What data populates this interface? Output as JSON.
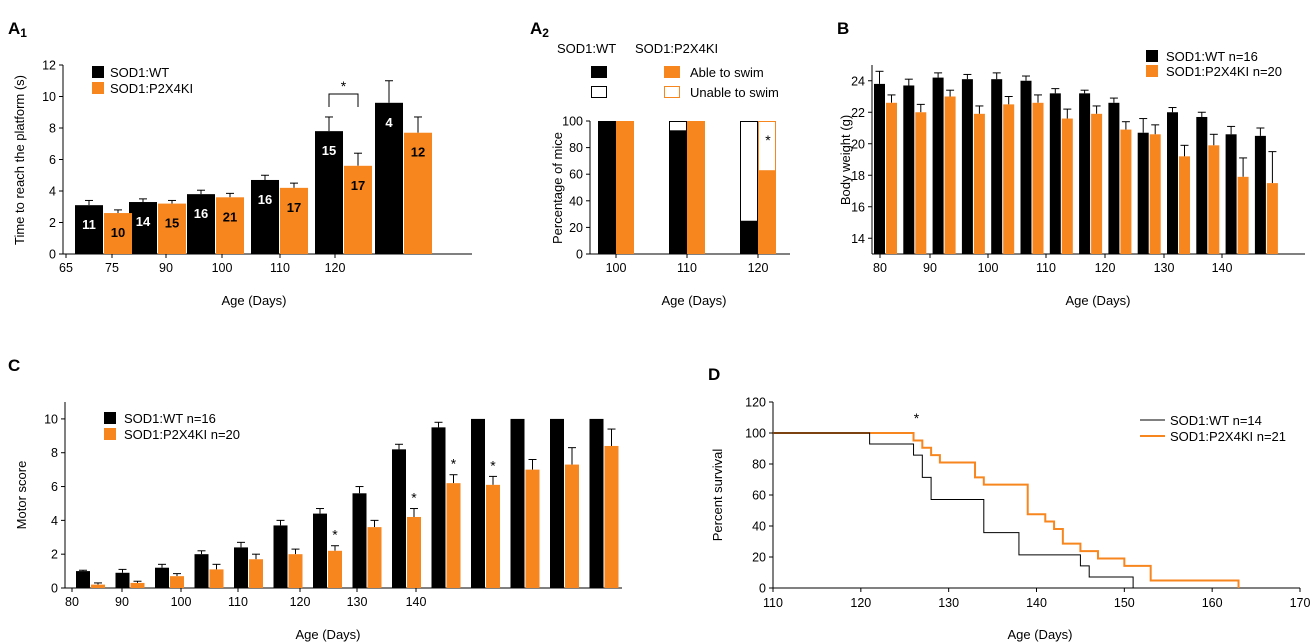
{
  "colors": {
    "wt": "#000000",
    "ki": "#f7861f",
    "axis": "#000000",
    "in_bar_text_dark": "#000000",
    "in_bar_text_light": "#ffffff"
  },
  "chart_data": [
    {
      "panel": "A1",
      "type": "bar",
      "ylabel": "Time to reach the platform (s)",
      "xlabel": "Age (Days)",
      "ylim": [
        0,
        12
      ],
      "yticks": [
        0,
        2,
        4,
        6,
        8,
        10,
        12
      ],
      "x_ticks": [
        "65",
        "75",
        "90",
        "100",
        "110",
        "120"
      ],
      "legend_position": "top-left",
      "series": [
        {
          "name": "SOD1:WT",
          "values": [
            3.1,
            3.3,
            3.8,
            4.7,
            7.8,
            9.6
          ],
          "errors": [
            0.3,
            0.2,
            0.25,
            0.3,
            0.9,
            1.4
          ],
          "n_labels": [
            "11",
            "14",
            "16",
            "16",
            "15",
            "4"
          ]
        },
        {
          "name": "SOD1:P2X4KI",
          "values": [
            2.6,
            3.2,
            3.6,
            4.2,
            5.6,
            7.7
          ],
          "errors": [
            0.2,
            0.2,
            0.25,
            0.3,
            0.8,
            1.0
          ],
          "n_labels": [
            "10",
            "15",
            "21",
            "17",
            "17",
            "12"
          ]
        }
      ],
      "annotations": [
        {
          "text": "*",
          "group": 4
        }
      ]
    },
    {
      "panel": "A2",
      "type": "bar",
      "stacked": true,
      "ylabel": "Percentage of mice",
      "xlabel": "Age (Days)",
      "ylim": [
        0,
        100
      ],
      "yticks": [
        0,
        20,
        40,
        60,
        80,
        100
      ],
      "categories": [
        "100",
        "110",
        "120"
      ],
      "legend_headers": [
        "SOD1:WT",
        "SOD1:P2X4KI"
      ],
      "legend_entries": [
        "Able to swim",
        "Unable to swim"
      ],
      "series": [
        {
          "name": "SOD1:WT",
          "able": [
            100,
            93,
            25
          ]
        },
        {
          "name": "SOD1:P2X4KI",
          "able": [
            100,
            100,
            63
          ]
        }
      ],
      "annotations": [
        {
          "text": "*",
          "category": "120"
        }
      ]
    },
    {
      "panel": "B",
      "type": "bar",
      "ylabel": "Body weight (g)",
      "xlabel": "Age (Days)",
      "ylim": [
        13,
        25
      ],
      "yticks": [
        14,
        16,
        18,
        20,
        22,
        24
      ],
      "x_ticks": [
        "80",
        "90",
        "100",
        "110",
        "120",
        "130",
        "140"
      ],
      "legend_position": "top-right",
      "series": [
        {
          "name": "SOD1:WT n=16",
          "values": [
            23.8,
            23.7,
            24.2,
            24.1,
            24.1,
            24.0,
            23.2,
            23.2,
            22.6,
            20.7,
            22.0,
            21.7,
            20.6,
            20.5
          ],
          "errors": [
            0.8,
            0.4,
            0.3,
            0.3,
            0.4,
            0.3,
            0.3,
            0.2,
            0.3,
            0.9,
            0.3,
            0.3,
            0.5,
            0.5
          ]
        },
        {
          "name": "SOD1:P2X4KI n=20",
          "values": [
            22.6,
            22.0,
            23.0,
            21.9,
            22.5,
            22.6,
            21.6,
            21.9,
            20.9,
            20.6,
            19.2,
            19.9,
            17.9,
            17.5
          ],
          "errors": [
            0.5,
            0.5,
            0.4,
            0.5,
            0.5,
            0.5,
            0.6,
            0.5,
            0.5,
            0.6,
            0.7,
            0.7,
            1.2,
            2.0
          ]
        }
      ]
    },
    {
      "panel": "C",
      "type": "bar",
      "ylabel": "Motor score",
      "xlabel": "Age (Days)",
      "ylim": [
        0,
        11
      ],
      "yticks": [
        0,
        2,
        4,
        6,
        8,
        10
      ],
      "x_ticks": [
        "80",
        "90",
        "100",
        "110",
        "120",
        "130",
        "140"
      ],
      "legend_position": "top-left",
      "series": [
        {
          "name": "SOD1:WT n=16",
          "values": [
            1.0,
            0.9,
            1.2,
            2.0,
            2.4,
            3.7,
            4.4,
            5.6,
            8.2,
            9.5,
            10,
            10,
            10,
            10
          ],
          "errors": [
            0.05,
            0.2,
            0.2,
            0.2,
            0.3,
            0.3,
            0.3,
            0.4,
            0.3,
            0.3,
            0,
            0,
            0,
            0
          ]
        },
        {
          "name": "SOD1:P2X4KI n=20",
          "values": [
            0.2,
            0.3,
            0.7,
            1.1,
            1.7,
            2.0,
            2.2,
            3.6,
            4.2,
            6.2,
            6.1,
            7.0,
            7.3,
            8.4
          ],
          "errors": [
            0.1,
            0.1,
            0.15,
            0.3,
            0.3,
            0.3,
            0.3,
            0.4,
            0.5,
            0.5,
            0.5,
            0.6,
            1.0,
            1.0
          ]
        }
      ],
      "annotations": [
        {
          "text": "*",
          "index": 6
        },
        {
          "text": "*",
          "index": 8
        },
        {
          "text": "*",
          "index": 9
        },
        {
          "text": "*",
          "index": 10
        }
      ]
    },
    {
      "panel": "D",
      "type": "line",
      "step": true,
      "ylabel": "Percent survival",
      "xlabel": "Age (Days)",
      "xlim": [
        110,
        170
      ],
      "ylim": [
        0,
        120
      ],
      "xticks": [
        110,
        120,
        130,
        140,
        150,
        160,
        170
      ],
      "yticks": [
        0,
        20,
        40,
        60,
        80,
        100,
        120
      ],
      "legend_position": "top-right",
      "series": [
        {
          "name": "SOD1:WT n=14",
          "x": [
            110,
            121,
            126,
            127,
            128,
            134,
            138,
            145,
            146,
            151,
            153
          ],
          "y": [
            100,
            92.9,
            85.7,
            71.4,
            57.1,
            35.7,
            21.4,
            14.3,
            7.1,
            0,
            0
          ]
        },
        {
          "name": "SOD1:P2X4KI n=21",
          "x": [
            110,
            126,
            127,
            128,
            129,
            133,
            134,
            139,
            141,
            142,
            143,
            145,
            147,
            150,
            153,
            163
          ],
          "y": [
            100,
            95.2,
            90.5,
            85.7,
            81.0,
            71.4,
            66.7,
            47.6,
            42.9,
            38.1,
            28.6,
            23.8,
            19.0,
            14.3,
            4.8,
            0
          ]
        }
      ],
      "annotations": [
        {
          "text": "*",
          "x": 126
        }
      ]
    }
  ]
}
